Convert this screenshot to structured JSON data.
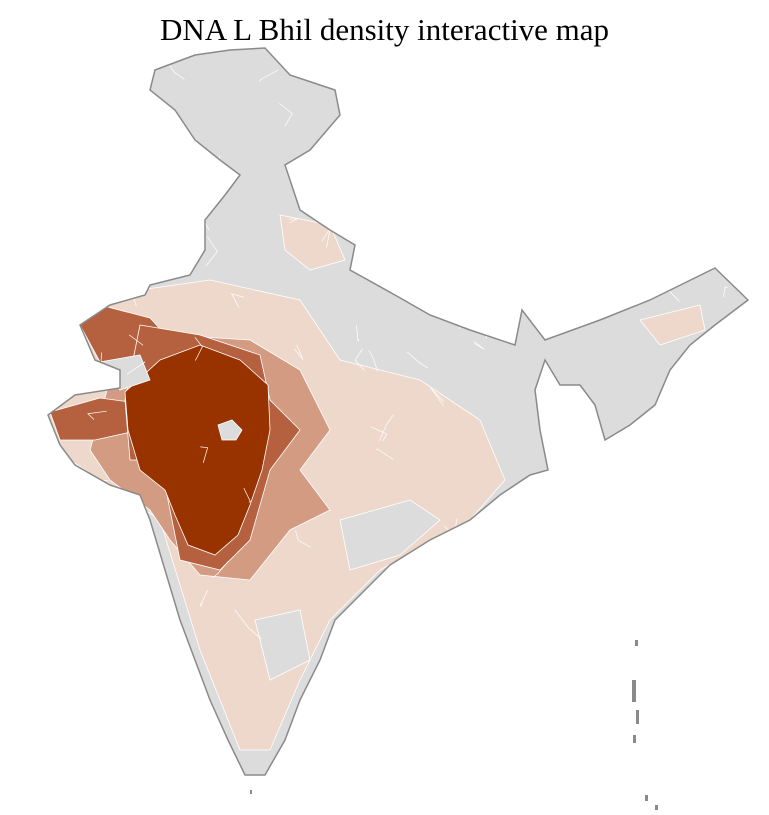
{
  "title": "DNA L Bhil density interactive map",
  "palette": {
    "no_data": "#dcdcdc",
    "very_low": "#eed8cc",
    "low": "#d39c82",
    "medium": "#b5613f",
    "high": "#983300",
    "district_border": "#ffffff",
    "state_border": "#8a8a8a"
  }
}
